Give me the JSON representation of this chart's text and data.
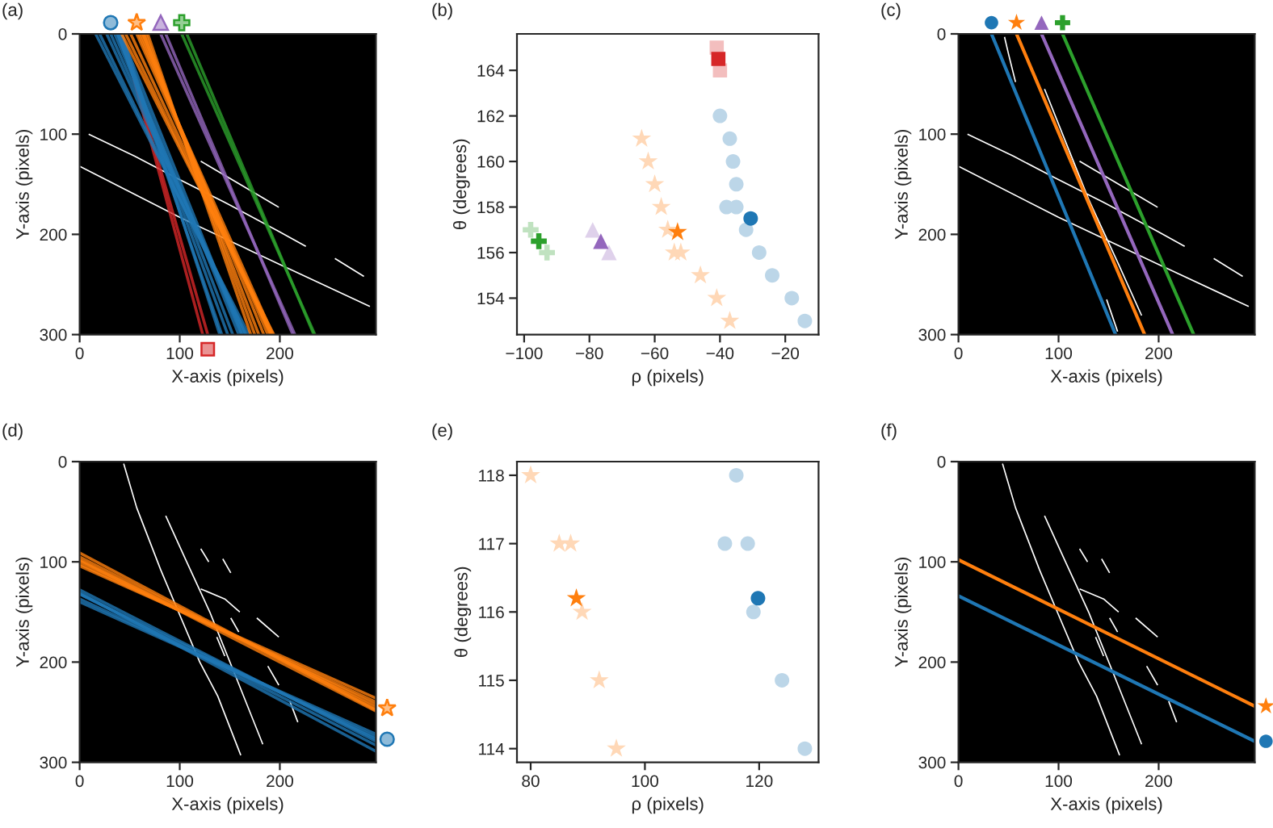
{
  "chart_data": [
    {
      "type": "line",
      "title": "(a)",
      "xlabel": "X-axis (pixels)",
      "ylabel": "Y-axis (pixels)",
      "xlim": [
        0,
        296
      ],
      "ylim": [
        300,
        0
      ],
      "xticks": [
        0,
        100,
        200
      ],
      "yticks": [
        0,
        100,
        200,
        300
      ],
      "series": [
        {
          "color": "#ffffff",
          "x": [
            0,
            100,
            200,
            290,
            null,
            9,
            55,
            97,
            145,
            199,
            226,
            null,
            121,
            160,
            199,
            null,
            255,
            284
          ],
          "values": [
            132,
            183,
            230,
            272,
            null,
            100,
            122,
            144,
            168,
            197,
            212,
            null,
            127,
            150,
            173,
            null,
            224,
            242
          ]
        },
        {
          "color": "#d62728",
          "x": [
            42,
            123
          ],
          "values": [
            0,
            300
          ]
        },
        {
          "color": "#d62728",
          "x": [
            42,
            128
          ],
          "values": [
            0,
            300
          ]
        },
        {
          "color": "#1f77b4",
          "x": [
            42,
            140
          ],
          "values": [
            0,
            300
          ]
        },
        {
          "color": "#1f77b4",
          "x": [
            39,
            142
          ],
          "values": [
            0,
            300
          ]
        },
        {
          "color": "#1f77b4",
          "x": [
            38,
            148
          ],
          "values": [
            0,
            300
          ]
        },
        {
          "color": "#1f77b4",
          "x": [
            38,
            153
          ],
          "values": [
            0,
            300
          ]
        },
        {
          "color": "#1f77b4",
          "x": [
            41,
            162
          ],
          "values": [
            0,
            300
          ]
        },
        {
          "color": "#1f77b4",
          "x": [
            38,
            159
          ],
          "values": [
            0,
            300
          ]
        },
        {
          "color": "#1f77b4",
          "x": [
            35,
            162
          ],
          "values": [
            0,
            300
          ]
        },
        {
          "color": "#1f77b4",
          "x": [
            31,
            164
          ],
          "values": [
            0,
            300
          ]
        },
        {
          "color": "#1f77b4",
          "x": [
            27,
            166
          ],
          "values": [
            0,
            300
          ]
        },
        {
          "color": "#1f77b4",
          "x": [
            20,
            166
          ],
          "values": [
            0,
            300
          ]
        },
        {
          "color": "#1f77b4",
          "x": [
            16,
            169
          ],
          "values": [
            0,
            300
          ]
        },
        {
          "color": "#ff7f0e",
          "x": [
            68,
            171
          ],
          "values": [
            0,
            300
          ]
        },
        {
          "color": "#ff7f0e",
          "x": [
            66,
            175
          ],
          "values": [
            0,
            300
          ]
        },
        {
          "color": "#ff7f0e",
          "x": [
            64,
            179
          ],
          "values": [
            0,
            300
          ]
        },
        {
          "color": "#ff7f0e",
          "x": [
            63,
            184
          ],
          "values": [
            0,
            300
          ]
        },
        {
          "color": "#ff7f0e",
          "x": [
            61,
            188
          ],
          "values": [
            0,
            300
          ]
        },
        {
          "color": "#ff7f0e",
          "x": [
            59,
            193
          ],
          "values": [
            0,
            300
          ]
        },
        {
          "color": "#ff7f0e",
          "x": [
            57,
            191
          ],
          "values": [
            0,
            300
          ]
        },
        {
          "color": "#ff7f0e",
          "x": [
            51,
            191
          ],
          "values": [
            0,
            300
          ]
        },
        {
          "color": "#ff7f0e",
          "x": [
            46,
            192
          ],
          "values": [
            0,
            300
          ]
        },
        {
          "color": "#ff7f0e",
          "x": [
            42,
            194
          ],
          "values": [
            0,
            300
          ]
        },
        {
          "color": "#9467bd",
          "x": [
            86,
            213
          ],
          "values": [
            0,
            300
          ]
        },
        {
          "color": "#9467bd",
          "x": [
            81,
            215
          ],
          "values": [
            0,
            300
          ]
        },
        {
          "color": "#2ca02c",
          "x": [
            107,
            234
          ],
          "values": [
            0,
            300
          ]
        },
        {
          "color": "#2ca02c",
          "x": [
            102,
            235
          ],
          "values": [
            0,
            300
          ]
        }
      ]
    },
    {
      "type": "scatter",
      "title": "(b)",
      "xlabel": "ρ (pixels)",
      "ylabel": "θ (degrees)",
      "xlim": [
        -102.2,
        -9.8
      ],
      "ylim": [
        152.4,
        165.6
      ],
      "xticks": [
        {
          "value": -100,
          "label": "−100"
        },
        {
          "value": -80,
          "label": "−80"
        },
        {
          "value": -60,
          "label": "−60"
        },
        {
          "value": -40,
          "label": "−40"
        },
        {
          "value": -20,
          "label": "−20"
        }
      ],
      "yticks": [
        154,
        156,
        158,
        160,
        162,
        164
      ],
      "series": [
        {
          "color": "#bcd6e8",
          "marker": "circle",
          "x": [
            -40,
            -37,
            -36,
            -35,
            -38,
            -35,
            -32,
            -28,
            -24,
            -18,
            -14
          ],
          "values": [
            162,
            161,
            160,
            159,
            158,
            158,
            157,
            156,
            155,
            154,
            153
          ]
        },
        {
          "color": "#ffd8b7",
          "marker": "star",
          "x": [
            -64,
            -62,
            -60,
            -58,
            -56,
            -54,
            -52,
            -46,
            -41,
            -37
          ],
          "values": [
            161,
            160,
            159,
            158,
            157,
            156,
            156,
            155,
            154,
            153
          ]
        },
        {
          "color": "#dfd1eb",
          "marker": "triangle",
          "x": [
            -79,
            -74
          ],
          "values": [
            157,
            156
          ]
        },
        {
          "color": "#c0e2c0",
          "marker": "cross",
          "x": [
            -98,
            -93
          ],
          "values": [
            157,
            156
          ]
        },
        {
          "color": "#f3bebe",
          "marker": "square",
          "x": [
            -41,
            -40
          ],
          "values": [
            165,
            164
          ]
        },
        {
          "color": "#1f77b4",
          "marker": "circle",
          "x": [
            -30.6
          ],
          "values": [
            157.5
          ]
        },
        {
          "color": "#ff7f0e",
          "marker": "star",
          "x": [
            -53.0
          ],
          "values": [
            156.9
          ]
        },
        {
          "color": "#9467bd",
          "marker": "triangle",
          "x": [
            -76.5
          ],
          "values": [
            156.5
          ]
        },
        {
          "color": "#2ca02c",
          "marker": "cross",
          "x": [
            -95.5
          ],
          "values": [
            156.5
          ]
        },
        {
          "color": "#d62728",
          "marker": "square",
          "x": [
            -40.5
          ],
          "values": [
            164.5
          ]
        }
      ]
    },
    {
      "type": "line",
      "title": "(c)",
      "xlabel": "X-axis (pixels)",
      "ylabel": "Y-axis (pixels)",
      "xlim": [
        0,
        296
      ],
      "ylim": [
        300,
        0
      ],
      "xticks": [
        0,
        100,
        200
      ],
      "yticks": [
        0,
        100,
        200,
        300
      ],
      "series": [
        {
          "color": "#ffffff",
          "x": [
            0,
            100,
            200,
            290,
            null,
            9,
            55,
            97,
            145,
            199,
            226,
            null,
            121,
            160,
            199,
            null,
            255,
            284,
            null,
            46,
            50,
            57,
            null,
            86,
            110,
            130,
            160,
            183,
            null,
            148,
            159
          ],
          "values": [
            132,
            183,
            230,
            272,
            null,
            100,
            122,
            144,
            168,
            197,
            212,
            null,
            127,
            150,
            173,
            null,
            224,
            242,
            null,
            3,
            20,
            48,
            null,
            55,
            115,
            165,
            230,
            281,
            null,
            265,
            297
          ]
        },
        {
          "color": "#1f77b4",
          "x": [
            33,
            157
          ],
          "values": [
            0,
            300
          ]
        },
        {
          "color": "#ff7f0e",
          "x": [
            58,
            186
          ],
          "values": [
            0,
            300
          ]
        },
        {
          "color": "#9467bd",
          "x": [
            83,
            214
          ],
          "values": [
            0,
            300
          ]
        },
        {
          "color": "#2ca02c",
          "x": [
            104,
            235
          ],
          "values": [
            0,
            300
          ]
        }
      ]
    },
    {
      "type": "line",
      "title": "(d)",
      "xlabel": "X-axis (pixels)",
      "ylabel": "Y-axis (pixels)",
      "xlim": [
        0,
        296
      ],
      "ylim": [
        300,
        0
      ],
      "xticks": [
        0,
        100,
        200
      ],
      "yticks": [
        0,
        100,
        200,
        300
      ],
      "series": [
        {
          "color": "#ffffff",
          "x": [
            44,
            57,
            81,
            100,
            120,
            138,
            161,
            null,
            86,
            106,
            130,
            155,
            183,
            null,
            121,
            129,
            null,
            143,
            151,
            null,
            121,
            145,
            160,
            null,
            151,
            159,
            null,
            177,
            199,
            null,
            188,
            199,
            null,
            210,
            218,
            null,
            137,
            145
          ],
          "values": [
            2,
            46,
            108,
            153,
            200,
            234,
            293,
            null,
            54,
            98,
            150,
            212,
            282,
            null,
            87,
            100,
            null,
            97,
            111,
            null,
            127,
            137,
            150,
            null,
            156,
            170,
            null,
            156,
            175,
            null,
            204,
            223,
            null,
            239,
            260,
            null,
            175,
            194
          ]
        },
        {
          "color": "#ff7f0e",
          "x": [
            0,
            296
          ],
          "values": [
            91,
            248
          ]
        },
        {
          "color": "#ff7f0e",
          "x": [
            0,
            296
          ],
          "values": [
            95,
            246
          ]
        },
        {
          "color": "#ff7f0e",
          "x": [
            0,
            296
          ],
          "values": [
            98,
            249
          ]
        },
        {
          "color": "#ff7f0e",
          "x": [
            0,
            296
          ],
          "values": [
            99,
            243
          ]
        },
        {
          "color": "#ff7f0e",
          "x": [
            0,
            296
          ],
          "values": [
            102,
            240
          ]
        },
        {
          "color": "#ff7f0e",
          "x": [
            0,
            296
          ],
          "values": [
            104,
            236
          ]
        },
        {
          "color": "#1f77b4",
          "x": [
            0,
            296
          ],
          "values": [
            131,
            289
          ]
        },
        {
          "color": "#1f77b4",
          "x": [
            0,
            296
          ],
          "values": [
            128,
            279
          ]
        },
        {
          "color": "#1f77b4",
          "x": [
            0,
            296
          ],
          "values": [
            132,
            283
          ]
        },
        {
          "color": "#1f77b4",
          "x": [
            0,
            296
          ],
          "values": [
            132,
            277
          ]
        },
        {
          "color": "#1f77b4",
          "x": [
            0,
            296
          ],
          "values": [
            137,
            275
          ]
        },
        {
          "color": "#1f77b4",
          "x": [
            0,
            296
          ],
          "values": [
            140,
            272
          ]
        }
      ]
    },
    {
      "type": "scatter",
      "title": "(e)",
      "xlabel": "ρ (pixels)",
      "ylabel": "θ (degrees)",
      "xlim": [
        77.6,
        130.4
      ],
      "ylim": [
        113.8,
        118.2
      ],
      "xticks": [
        80,
        100,
        120
      ],
      "yticks": [
        114,
        115,
        116,
        117,
        118
      ],
      "series": [
        {
          "color": "#ffd8b7",
          "marker": "star",
          "x": [
            80,
            85,
            87,
            89,
            92,
            95
          ],
          "values": [
            118,
            117,
            117,
            116,
            115,
            114
          ]
        },
        {
          "color": "#bcd6e8",
          "marker": "circle",
          "x": [
            116,
            114,
            118,
            119,
            124,
            128
          ],
          "values": [
            118,
            117,
            117,
            116,
            115,
            114
          ]
        },
        {
          "color": "#ff7f0e",
          "marker": "star",
          "x": [
            88.0
          ],
          "values": [
            116.2
          ]
        },
        {
          "color": "#1f77b4",
          "marker": "circle",
          "x": [
            119.8
          ],
          "values": [
            116.2
          ]
        }
      ]
    },
    {
      "type": "line",
      "title": "(f)",
      "xlabel": "X-axis (pixels)",
      "ylabel": "Y-axis (pixels)",
      "xlim": [
        0,
        296
      ],
      "ylim": [
        300,
        0
      ],
      "xticks": [
        0,
        100,
        200
      ],
      "yticks": [
        0,
        100,
        200,
        300
      ],
      "series": [
        {
          "color": "#ffffff",
          "x": [
            44,
            57,
            81,
            100,
            120,
            138,
            161,
            null,
            86,
            106,
            130,
            155,
            183,
            null,
            121,
            129,
            null,
            143,
            151,
            null,
            121,
            145,
            160,
            null,
            151,
            159,
            null,
            177,
            199,
            null,
            188,
            199,
            null,
            210,
            218,
            null,
            137,
            145
          ],
          "values": [
            2,
            46,
            108,
            153,
            200,
            234,
            293,
            null,
            54,
            98,
            150,
            212,
            282,
            null,
            87,
            100,
            null,
            97,
            111,
            null,
            127,
            137,
            150,
            null,
            156,
            170,
            null,
            156,
            175,
            null,
            204,
            223,
            null,
            239,
            260,
            null,
            175,
            194
          ]
        },
        {
          "color": "#ff7f0e",
          "x": [
            0,
            296
          ],
          "values": [
            98,
            244
          ]
        },
        {
          "color": "#1f77b4",
          "x": [
            0,
            296
          ],
          "values": [
            134,
            279
          ]
        }
      ]
    }
  ]
}
